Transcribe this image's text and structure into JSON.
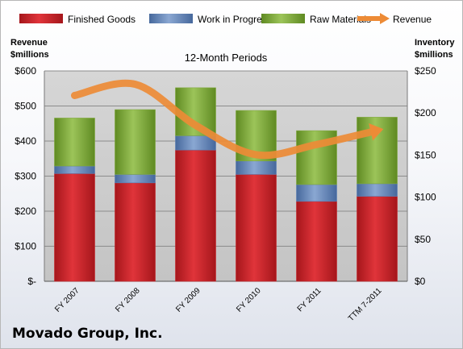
{
  "company": "Movado Group, Inc.",
  "colors": {
    "finished": "#c8262b",
    "wip": "#5b7fb5",
    "raw": "#7fa83c",
    "revenue": "#ed8b36",
    "grid": "#8c8c8c",
    "plot_bg": "#c9c9c9"
  },
  "chart_data": {
    "type": "bar",
    "title": "12-Month Periods",
    "categories": [
      "FY 2007",
      "FY 2008",
      "FY 2009",
      "FY 2010",
      "FY 2011",
      "TTM 7-2011"
    ],
    "series": [
      {
        "name": "Finished Goods",
        "axis": "right",
        "values": [
          128,
          117,
          156,
          127,
          95,
          101
        ]
      },
      {
        "name": "Work in Progress",
        "axis": "right",
        "values": [
          9,
          10,
          17,
          16,
          20,
          15
        ]
      },
      {
        "name": "Raw Materials",
        "axis": "right",
        "values": [
          57,
          77,
          57,
          60,
          64,
          79
        ]
      },
      {
        "name": "Revenue",
        "type": "line",
        "axis": "left",
        "values": [
          530,
          562,
          445,
          361,
          390,
          430
        ]
      }
    ],
    "y_left": {
      "label_line1": "Revenue",
      "label_line2": "$millions",
      "range": [
        0,
        600
      ],
      "ticks": [
        "$-",
        "$100",
        "$200",
        "$300",
        "$400",
        "$500",
        "$600"
      ]
    },
    "y_right": {
      "label_line1": "Inventory",
      "label_line2": "$millions",
      "range": [
        0,
        250
      ],
      "ticks": [
        "$0",
        "$50",
        "$100",
        "$150",
        "$200",
        "$250"
      ]
    },
    "stacked": true,
    "grid": true,
    "legend": "top"
  }
}
